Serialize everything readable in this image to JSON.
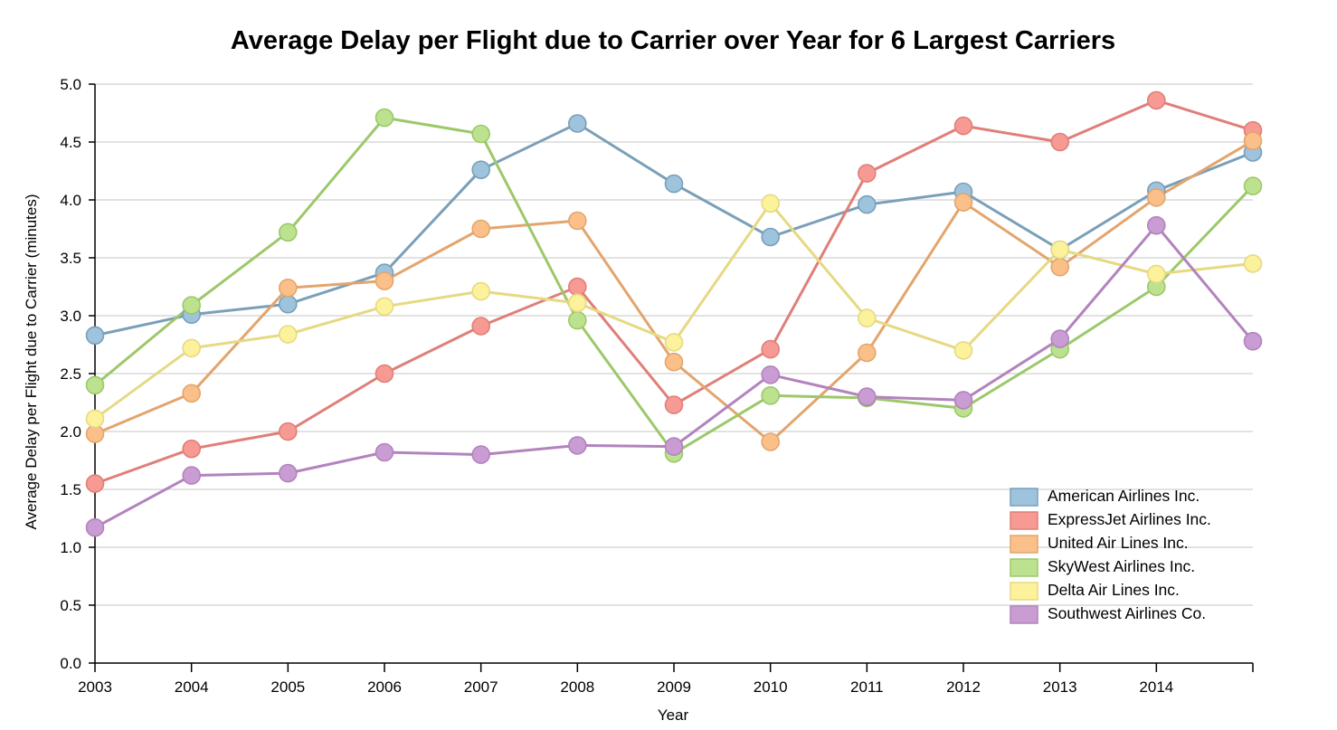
{
  "chart_data": {
    "type": "line",
    "title": "Average Delay per Flight due to Carrier over Year for 6 Largest Carriers",
    "xlabel": "Year",
    "ylabel": "Average Delay per Flight due to Carrier (minutes)",
    "x": [
      2003,
      2004,
      2005,
      2006,
      2007,
      2008,
      2009,
      2010,
      2011,
      2012,
      2013,
      2014,
      2015
    ],
    "x_tick_labels": [
      "2003",
      "2004",
      "2005",
      "2006",
      "2007",
      "2008",
      "2009",
      "2010",
      "2011",
      "2012",
      "2013",
      "2014",
      ""
    ],
    "ylim": [
      0,
      5
    ],
    "y_ticks": [
      "0.0",
      "0.5",
      "1.0",
      "1.5",
      "2.0",
      "2.5",
      "3.0",
      "3.5",
      "4.0",
      "4.5",
      "5.0"
    ],
    "grid": true,
    "legend_position": "bottom-right",
    "series": [
      {
        "name": "American Airlines Inc.",
        "color": "#7a9fb8",
        "marker_color": "#9ec3dc",
        "values": [
          2.83,
          3.01,
          3.1,
          3.37,
          4.26,
          4.66,
          4.14,
          3.68,
          3.96,
          4.07,
          3.57,
          4.08,
          4.41
        ]
      },
      {
        "name": "ExpressJet Airlines Inc.",
        "color": "#e07f78",
        "marker_color": "#f79a93",
        "values": [
          1.55,
          1.85,
          2.0,
          2.5,
          2.91,
          3.25,
          2.23,
          2.71,
          4.23,
          4.64,
          4.5,
          4.86,
          4.6
        ]
      },
      {
        "name": "United Air Lines Inc.",
        "color": "#e3a56d",
        "marker_color": "#fbc08a",
        "values": [
          1.98,
          2.33,
          3.24,
          3.3,
          3.75,
          3.82,
          2.6,
          1.91,
          2.68,
          3.98,
          3.42,
          4.02,
          4.51
        ]
      },
      {
        "name": "SkyWest Airlines Inc.",
        "color": "#9cc86a",
        "marker_color": "#bde28f",
        "values": [
          2.4,
          3.09,
          3.72,
          4.71,
          4.57,
          2.96,
          1.81,
          2.31,
          2.29,
          2.2,
          2.71,
          3.25,
          4.12
        ]
      },
      {
        "name": "Delta Air Lines Inc.",
        "color": "#e6d982",
        "marker_color": "#fdf29c",
        "values": [
          2.11,
          2.72,
          2.84,
          3.08,
          3.21,
          3.11,
          2.77,
          3.97,
          2.98,
          2.7,
          3.57,
          3.36,
          3.45
        ]
      },
      {
        "name": "Southwest Airlines Co.",
        "color": "#b283bd",
        "marker_color": "#c99dd4",
        "values": [
          1.17,
          1.62,
          1.64,
          1.82,
          1.8,
          1.88,
          1.87,
          2.49,
          2.3,
          2.27,
          2.8,
          3.78,
          2.78
        ]
      }
    ]
  }
}
